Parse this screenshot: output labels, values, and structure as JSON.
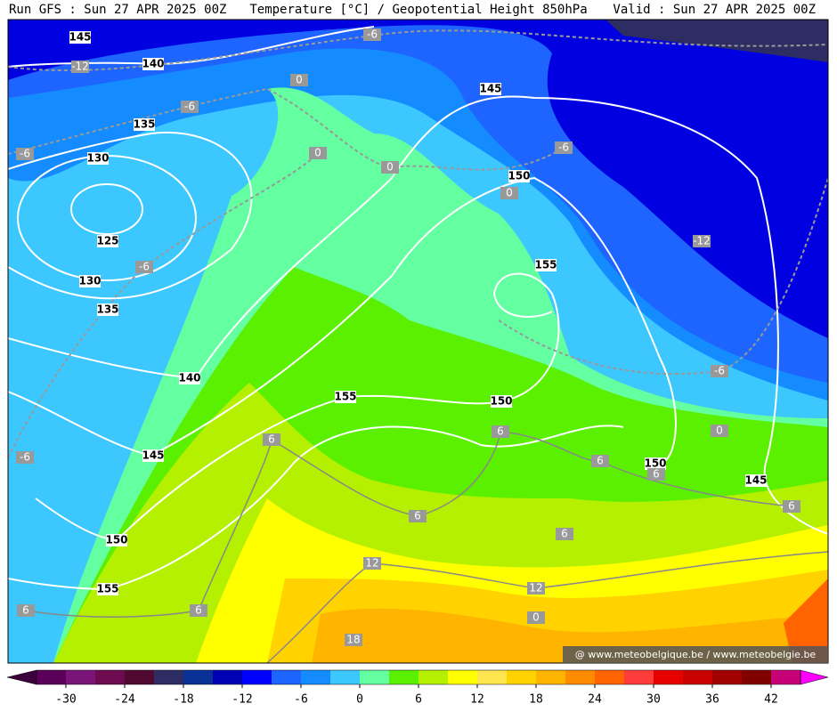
{
  "header": {
    "run": "Run GFS : Sun 27 APR 2025 00Z",
    "title": "Temperature [°C] / Geopotential Height 850hPa",
    "valid": "Valid : Sun 27 APR 2025 00Z"
  },
  "height_labels": [
    "145",
    "140",
    "135",
    "130",
    "145",
    "150",
    "125",
    "130",
    "155",
    "135",
    "140",
    "155",
    "150",
    "145",
    "150",
    "145",
    "150",
    "155"
  ],
  "temperature_labels": [
    "-12",
    "-6",
    "0",
    "-6",
    "-6",
    "0",
    "0",
    "-6",
    "0",
    "-6",
    "-12",
    "-6",
    "6",
    "6",
    "0",
    "-6",
    "6",
    "6",
    "6",
    "6",
    "6",
    "12",
    "12",
    "6",
    "6",
    "0",
    "18"
  ],
  "colorbar": {
    "range": [
      -33,
      45
    ],
    "ticks": [
      -30,
      -24,
      -18,
      -12,
      -6,
      0,
      6,
      12,
      18,
      24,
      30,
      36,
      42
    ],
    "colors": [
      "#5a005a",
      "#7a1478",
      "#6e0a50",
      "#500a32",
      "#2d2d64",
      "#0a3296",
      "#0000b4",
      "#0000ff",
      "#1e64ff",
      "#148cff",
      "#3cc8ff",
      "#64ffa0",
      "#5af000",
      "#b4f000",
      "#ffff00",
      "#ffe650",
      "#ffd200",
      "#ffb400",
      "#ff8c00",
      "#ff6400",
      "#ff3c3c",
      "#e60000",
      "#c80000",
      "#a00000",
      "#800000",
      "#c80078"
    ],
    "low_color": "#3c003c",
    "high_color": "#ff00ff"
  },
  "watermark": "@ www.meteobelgique.be / www.meteobelgie.be"
}
